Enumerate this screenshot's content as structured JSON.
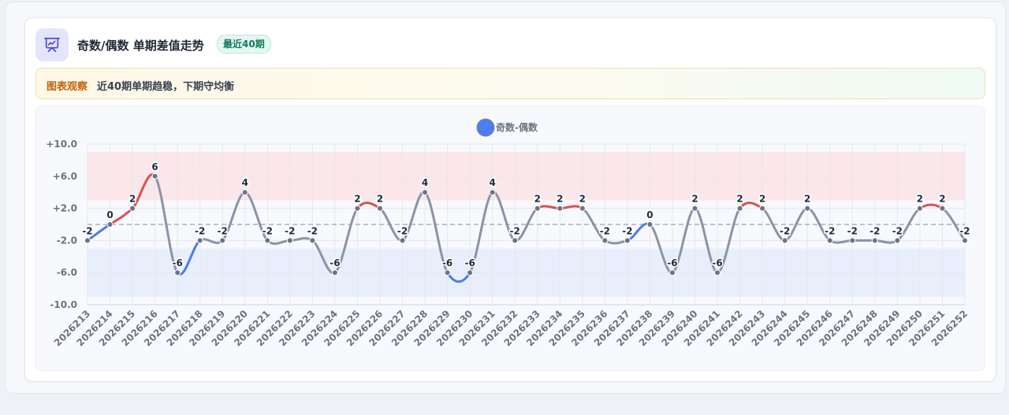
{
  "header": {
    "title": "奇数/偶数 单期差值走势",
    "badge": "最近40期",
    "icon": "presentation-chart-icon"
  },
  "note": {
    "label": "图表观察",
    "text": "近40期单期趋稳，下期守均衡"
  },
  "colors": {
    "accent": "#5b67e6",
    "positive": "#d9534f",
    "negative": "#4a7fe0",
    "neutral": "#8a94a6",
    "legend": "#4c7ef0",
    "upper_band": "#fbe3e6",
    "lower_band": "#e6ecfb"
  },
  "chart_data": {
    "type": "line",
    "title": "",
    "xlabel": "",
    "ylabel": "",
    "ylim": [
      -10,
      10
    ],
    "yticks": [
      10,
      6,
      2,
      -2,
      -6,
      -10
    ],
    "ytick_labels": [
      "+10.0",
      "+6.0",
      "+2.0",
      "-2.0",
      "-6.0",
      "-10.0"
    ],
    "bands": [
      {
        "from": 3,
        "to": 9,
        "color": "#fbe3e6"
      },
      {
        "from": -9,
        "to": -3,
        "color": "#e6ecfb"
      }
    ],
    "reference_line": 0,
    "legend_position": "top-center",
    "x": [
      "2026213",
      "2026214",
      "2026215",
      "2026216",
      "2026217",
      "2026218",
      "2026219",
      "2026220",
      "2026221",
      "2026222",
      "2026223",
      "2026224",
      "2026225",
      "2026226",
      "2026227",
      "2026228",
      "2026229",
      "2026230",
      "2026231",
      "2026232",
      "2026233",
      "2026234",
      "2026235",
      "2026236",
      "2026237",
      "2026238",
      "2026239",
      "2026240",
      "2026241",
      "2026242",
      "2026243",
      "2026244",
      "2026245",
      "2026246",
      "2026247",
      "2026248",
      "2026249",
      "2026250",
      "2026251",
      "2026252"
    ],
    "series": [
      {
        "name": "奇数-偶数",
        "values": [
          -2,
          0,
          2,
          6,
          -6,
          -2,
          -2,
          4,
          -2,
          -2,
          -2,
          -6,
          2,
          2,
          -2,
          4,
          -6,
          -6,
          4,
          -2,
          2,
          2,
          2,
          -2,
          -2,
          0,
          -6,
          2,
          -6,
          2,
          2,
          -2,
          2,
          -2,
          -2,
          -2,
          -2,
          2,
          2,
          -2
        ]
      }
    ]
  }
}
